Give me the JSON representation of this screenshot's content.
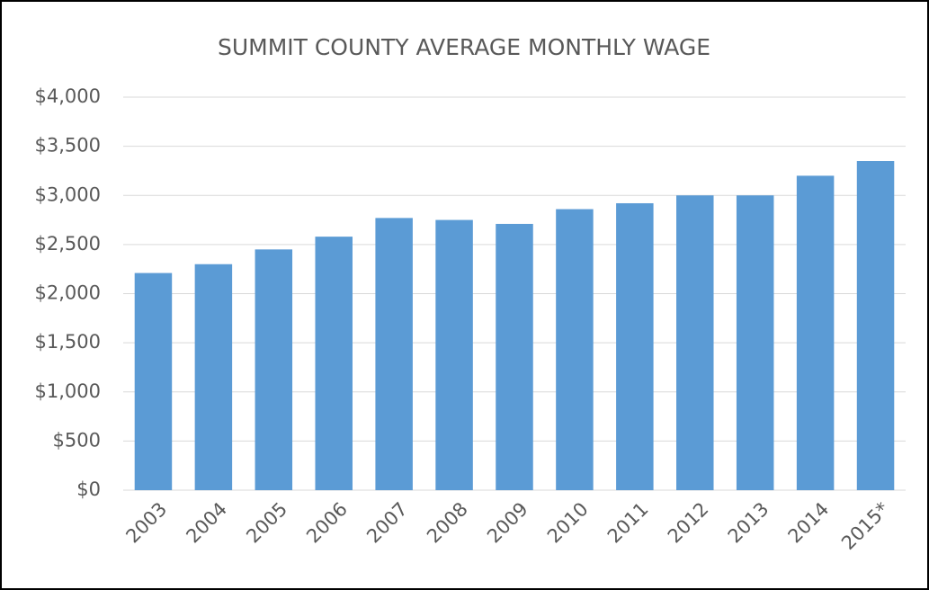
{
  "chart_data": {
    "type": "bar",
    "title": "SUMMIT COUNTY AVERAGE MONTHLY WAGE",
    "categories": [
      "2003",
      "2004",
      "2005",
      "2006",
      "2007",
      "2008",
      "2009",
      "2010",
      "2011",
      "2012",
      "2013",
      "2014",
      "2015*"
    ],
    "values": [
      2210,
      2300,
      2450,
      2580,
      2770,
      2750,
      2710,
      2860,
      2920,
      3000,
      3000,
      3200,
      3350
    ],
    "color": "#5b9bd5",
    "ylim": [
      0,
      4000
    ],
    "yticks": [
      {
        "value": 0,
        "label": "$0"
      },
      {
        "value": 500,
        "label": "$500"
      },
      {
        "value": 1000,
        "label": "$1,000"
      },
      {
        "value": 1500,
        "label": "$1,500"
      },
      {
        "value": 2000,
        "label": "$2,000"
      },
      {
        "value": 2500,
        "label": "$2,500"
      },
      {
        "value": 3000,
        "label": "$3,000"
      },
      {
        "value": 3500,
        "label": "$3,500"
      },
      {
        "value": 4000,
        "label": "$4,000"
      }
    ],
    "grid": true
  }
}
